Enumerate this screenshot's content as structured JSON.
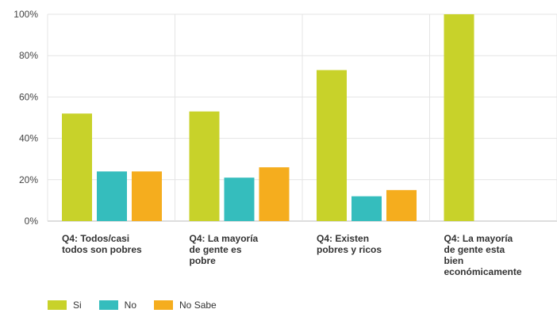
{
  "chart_data": {
    "type": "bar",
    "categories": [
      [
        "Q4: Todos/casi",
        "todos son pobres"
      ],
      [
        "Q4: La mayoría",
        "de gente es",
        "pobre"
      ],
      [
        "Q4: Existen",
        "pobres y ricos"
      ],
      [
        "Q4: La mayoría",
        "de gente esta",
        "bien",
        "económicamente"
      ]
    ],
    "series": [
      {
        "name": "Si",
        "color": "#c8d22a",
        "values": [
          52,
          53,
          73,
          100
        ]
      },
      {
        "name": "No",
        "color": "#35bdbd",
        "values": [
          24,
          21,
          12,
          0
        ]
      },
      {
        "name": "No Sabe",
        "color": "#f5ad1e",
        "values": [
          24,
          26,
          15,
          0
        ]
      }
    ],
    "ylim": [
      0,
      100
    ],
    "yticks": [
      "0%",
      "20%",
      "40%",
      "60%",
      "80%",
      "100%"
    ],
    "ytick_values": [
      0,
      20,
      40,
      60,
      80,
      100
    ],
    "grid": true,
    "legend_position": "bottom-left"
  }
}
